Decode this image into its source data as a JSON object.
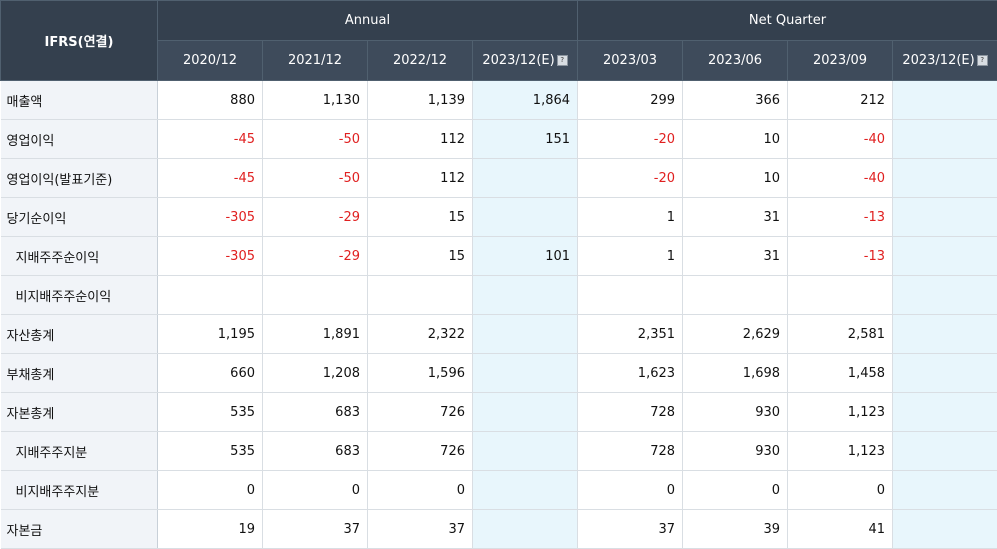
{
  "header": {
    "corner": "IFRS(연결)",
    "groups": [
      {
        "label": "Annual"
      },
      {
        "label": "Net Quarter"
      }
    ],
    "periods": [
      {
        "label": "2020/12"
      },
      {
        "label": "2021/12"
      },
      {
        "label": "2022/12"
      },
      {
        "label": "2023/12(E)",
        "estimate": true
      },
      {
        "label": "2023/03"
      },
      {
        "label": "2023/06"
      },
      {
        "label": "2023/09"
      },
      {
        "label": "2023/12(E)",
        "estimate": true
      }
    ],
    "estimate_icon": "info-icon"
  },
  "rows": [
    {
      "label": "매출액",
      "sub": false,
      "values": [
        "880",
        "1,130",
        "1,139",
        "1,864",
        "299",
        "366",
        "212",
        ""
      ]
    },
    {
      "label": "영업이익",
      "sub": false,
      "values": [
        "-45",
        "-50",
        "112",
        "151",
        "-20",
        "10",
        "-40",
        ""
      ]
    },
    {
      "label": "영업이익(발표기준)",
      "sub": false,
      "values": [
        "-45",
        "-50",
        "112",
        "",
        "-20",
        "10",
        "-40",
        ""
      ]
    },
    {
      "label": "당기순이익",
      "sub": false,
      "values": [
        "-305",
        "-29",
        "15",
        "",
        "1",
        "31",
        "-13",
        ""
      ]
    },
    {
      "label": "지배주주순이익",
      "sub": true,
      "values": [
        "-305",
        "-29",
        "15",
        "101",
        "1",
        "31",
        "-13",
        ""
      ]
    },
    {
      "label": "비지배주주순이익",
      "sub": true,
      "values": [
        "",
        "",
        "",
        "",
        "",
        "",
        "",
        ""
      ]
    },
    {
      "label": "자산총계",
      "sub": false,
      "values": [
        "1,195",
        "1,891",
        "2,322",
        "",
        "2,351",
        "2,629",
        "2,581",
        ""
      ]
    },
    {
      "label": "부채총계",
      "sub": false,
      "values": [
        "660",
        "1,208",
        "1,596",
        "",
        "1,623",
        "1,698",
        "1,458",
        ""
      ]
    },
    {
      "label": "자본총계",
      "sub": false,
      "values": [
        "535",
        "683",
        "726",
        "",
        "728",
        "930",
        "1,123",
        ""
      ]
    },
    {
      "label": "지배주주지분",
      "sub": true,
      "values": [
        "535",
        "683",
        "726",
        "",
        "728",
        "930",
        "1,123",
        ""
      ]
    },
    {
      "label": "비지배주주지분",
      "sub": true,
      "values": [
        "0",
        "0",
        "0",
        "",
        "0",
        "0",
        "0",
        ""
      ]
    },
    {
      "label": "자본금",
      "sub": false,
      "values": [
        "19",
        "37",
        "37",
        "",
        "37",
        "39",
        "41",
        ""
      ]
    }
  ],
  "colors": {
    "header_bg": "#34404e",
    "estimate_bg": "#e8f6fc",
    "label_bg": "#f1f4f8",
    "negative": "#e02020"
  }
}
